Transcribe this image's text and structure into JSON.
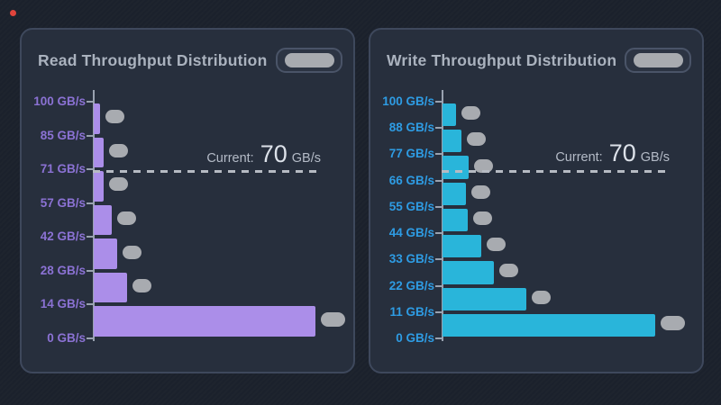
{
  "theme": {
    "page_bg": "#1b212c",
    "panel_bg": "#272f3d",
    "panel_border": "#3e485c",
    "title_color": "#aab2be",
    "axis_color": "#99a2b0",
    "pill_color": "#a8abb0",
    "button_outline_color": "#4a5468",
    "dash_color": "#b6bbc3",
    "current_text_color": "#b4bbc7",
    "current_value_color": "#dce1e9",
    "recording_dot_color": "#e0443c"
  },
  "chart_data": [
    {
      "type": "bar",
      "orientation": "horizontal",
      "title": "Read Throughput Distribution",
      "bar_color": "#ab8ee9",
      "tick_label_color": "#8b72d4",
      "x_axis": {
        "label": "",
        "scale": "relative frequency (unlabeled)"
      },
      "ticks": [
        {
          "label": "100 GB/s",
          "value": 100
        },
        {
          "label": "85 GB/s",
          "value": 85
        },
        {
          "label": "71 GB/s",
          "value": 71
        },
        {
          "label": "57 GB/s",
          "value": 57
        },
        {
          "label": "42 GB/s",
          "value": 42
        },
        {
          "label": "28 GB/s",
          "value": 28
        },
        {
          "label": "14 GB/s",
          "value": 14
        },
        {
          "label": "0 GB/s",
          "value": 0
        }
      ],
      "bars": [
        {
          "bucket": "85-100 GB/s",
          "relative_length": 7
        },
        {
          "bucket": "71-85 GB/s",
          "relative_length": 11
        },
        {
          "bucket": "57-71 GB/s",
          "relative_length": 11
        },
        {
          "bucket": "42-57 GB/s",
          "relative_length": 20
        },
        {
          "bucket": "28-42 GB/s",
          "relative_length": 26
        },
        {
          "bucket": "14-28 GB/s",
          "relative_length": 37
        },
        {
          "bucket": "0-14 GB/s",
          "relative_length": 246
        }
      ],
      "current_marker": {
        "prefix": "Current:",
        "value": "70",
        "unit": "GB/s",
        "numeric": 70,
        "style": "dashed-line"
      }
    },
    {
      "type": "bar",
      "orientation": "horizontal",
      "title": "Write Throughput Distribution",
      "bar_color": "#29b5da",
      "tick_label_color": "#2e9ce4",
      "x_axis": {
        "label": "",
        "scale": "relative frequency (unlabeled)"
      },
      "ticks": [
        {
          "label": "100 GB/s",
          "value": 100
        },
        {
          "label": "88 GB/s",
          "value": 88
        },
        {
          "label": "77 GB/s",
          "value": 77
        },
        {
          "label": "66 GB/s",
          "value": 66
        },
        {
          "label": "55 GB/s",
          "value": 55
        },
        {
          "label": "44 GB/s",
          "value": 44
        },
        {
          "label": "33 GB/s",
          "value": 33
        },
        {
          "label": "22 GB/s",
          "value": 22
        },
        {
          "label": "11 GB/s",
          "value": 11
        },
        {
          "label": "0 GB/s",
          "value": 0
        }
      ],
      "bars": [
        {
          "bucket": "88-100 GB/s",
          "relative_length": 15
        },
        {
          "bucket": "77-88 GB/s",
          "relative_length": 21
        },
        {
          "bucket": "66-77 GB/s",
          "relative_length": 29
        },
        {
          "bucket": "55-66 GB/s",
          "relative_length": 26
        },
        {
          "bucket": "44-55 GB/s",
          "relative_length": 28
        },
        {
          "bucket": "33-44 GB/s",
          "relative_length": 43
        },
        {
          "bucket": "22-33 GB/s",
          "relative_length": 57
        },
        {
          "bucket": "11-22 GB/s",
          "relative_length": 93
        },
        {
          "bucket": "0-11 GB/s",
          "relative_length": 236
        }
      ],
      "current_marker": {
        "prefix": "Current:",
        "value": "70",
        "unit": "GB/s",
        "numeric": 70,
        "style": "dashed-line"
      }
    }
  ]
}
